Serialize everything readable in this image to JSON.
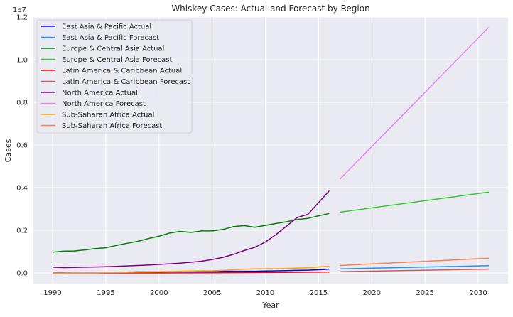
{
  "chart_data": {
    "type": "line",
    "title": "Whiskey Cases: Actual and Forecast by Region",
    "xlabel": "Year",
    "ylabel": "Cases",
    "y_multiplier_label": "1e7",
    "xlim": [
      1988.2,
      2032.8
    ],
    "ylim": [
      -0.05,
      1.2
    ],
    "x_ticks": [
      1990,
      1995,
      2000,
      2005,
      2010,
      2015,
      2020,
      2025,
      2030
    ],
    "x_tick_labels": [
      "1990",
      "1995",
      "2000",
      "2005",
      "2010",
      "2015",
      "2020",
      "2025",
      "2030"
    ],
    "y_ticks": [
      0.0,
      0.2,
      0.4,
      0.6,
      0.8,
      1.0,
      1.2
    ],
    "y_tick_labels": [
      "0.0",
      "0.2",
      "0.4",
      "0.6",
      "0.8",
      "1.0",
      "1.2"
    ],
    "grid": true,
    "legend_position": "top-left",
    "background_color": "#eaeaf2",
    "series": [
      {
        "name": "East Asia & Pacific Actual",
        "color": "#0000ff",
        "x": [
          1990,
          1991,
          1992,
          1993,
          1994,
          1995,
          1996,
          1997,
          1998,
          1999,
          2000,
          2001,
          2002,
          2003,
          2004,
          2005,
          2006,
          2007,
          2008,
          2009,
          2010,
          2011,
          2012,
          2013,
          2014,
          2015,
          2016
        ],
        "y": [
          0.002,
          0.002,
          0.003,
          0.003,
          0.003,
          0.004,
          0.004,
          0.004,
          0.005,
          0.005,
          0.005,
          0.006,
          0.006,
          0.006,
          0.007,
          0.007,
          0.008,
          0.008,
          0.008,
          0.008,
          0.009,
          0.01,
          0.011,
          0.012,
          0.013,
          0.015,
          0.018
        ]
      },
      {
        "name": "East Asia & Pacific Forecast",
        "color": "#1e90ff",
        "x": [
          2017,
          2031
        ],
        "y": [
          0.019,
          0.034
        ]
      },
      {
        "name": "Europe & Central Asia Actual",
        "color": "#008000",
        "x": [
          1990,
          1991,
          1992,
          1993,
          1994,
          1995,
          1996,
          1997,
          1998,
          1999,
          2000,
          2001,
          2002,
          2003,
          2004,
          2005,
          2006,
          2007,
          2008,
          2009,
          2010,
          2011,
          2012,
          2013,
          2014,
          2015,
          2016
        ],
        "y": [
          0.097,
          0.102,
          0.103,
          0.108,
          0.114,
          0.118,
          0.129,
          0.139,
          0.148,
          0.161,
          0.172,
          0.187,
          0.195,
          0.19,
          0.197,
          0.197,
          0.204,
          0.217,
          0.222,
          0.214,
          0.223,
          0.232,
          0.24,
          0.251,
          0.256,
          0.268,
          0.279
        ]
      },
      {
        "name": "Europe & Central Asia Forecast",
        "color": "#32cd32",
        "x": [
          2017,
          2031
        ],
        "y": [
          0.285,
          0.379
        ]
      },
      {
        "name": "Latin America & Caribbean Actual",
        "color": "#ff0000",
        "x": [
          1990,
          1995,
          2000,
          2005,
          2010,
          2016
        ],
        "y": [
          0.0,
          0.0,
          0.0,
          0.001,
          0.002,
          0.004
        ]
      },
      {
        "name": "Latin America & Caribbean Forecast",
        "color": "#cd5c5c",
        "x": [
          2017,
          2031
        ],
        "y": [
          0.006,
          0.018
        ]
      },
      {
        "name": "North America Actual",
        "color": "#800080",
        "x": [
          1990,
          1991,
          1992,
          1993,
          1994,
          1995,
          1996,
          1997,
          1998,
          1999,
          2000,
          2001,
          2002,
          2003,
          2004,
          2005,
          2006,
          2007,
          2008,
          2009,
          2010,
          2011,
          2012,
          2013,
          2014,
          2015,
          2016
        ],
        "y": [
          0.027,
          0.025,
          0.026,
          0.027,
          0.028,
          0.029,
          0.031,
          0.033,
          0.035,
          0.037,
          0.04,
          0.043,
          0.046,
          0.05,
          0.055,
          0.063,
          0.073,
          0.087,
          0.105,
          0.12,
          0.145,
          0.18,
          0.22,
          0.26,
          0.275,
          0.33,
          0.385
        ]
      },
      {
        "name": "North America Forecast",
        "color": "#ee82ee",
        "x": [
          2017,
          2031
        ],
        "y": [
          0.44,
          1.152
        ]
      },
      {
        "name": "Sub-Saharan Africa Actual",
        "color": "#ffa500",
        "x": [
          1990,
          1991,
          1992,
          1993,
          1994,
          1995,
          1996,
          1997,
          1998,
          1999,
          2000,
          2001,
          2002,
          2003,
          2004,
          2005,
          2006,
          2007,
          2008,
          2009,
          2010,
          2011,
          2012,
          2013,
          2014,
          2015,
          2016
        ],
        "y": [
          0.0,
          0.0,
          0.001,
          0.001,
          0.001,
          0.002,
          0.002,
          0.003,
          0.004,
          0.005,
          0.006,
          0.007,
          0.008,
          0.009,
          0.01,
          0.01,
          0.012,
          0.015,
          0.018,
          0.019,
          0.02,
          0.02,
          0.021,
          0.023,
          0.024,
          0.028,
          0.032
        ]
      },
      {
        "name": "Sub-Saharan Africa Forecast",
        "color": "#ff7f50",
        "x": [
          2017,
          2031
        ],
        "y": [
          0.035,
          0.069
        ]
      }
    ]
  }
}
